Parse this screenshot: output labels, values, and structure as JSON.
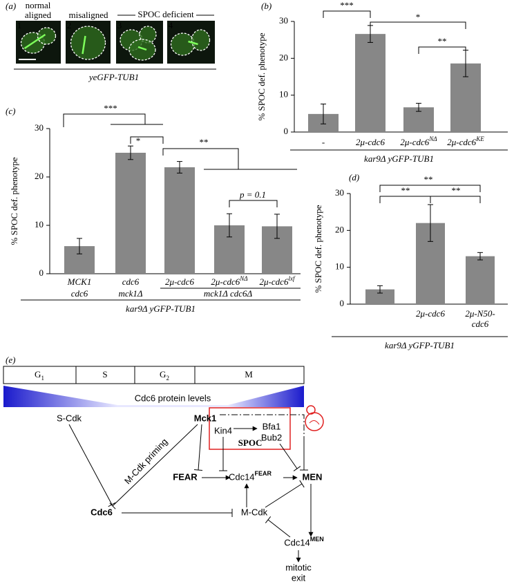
{
  "panel_labels": [
    "(a)",
    "(b)",
    "(c)",
    "(d)",
    "(e)"
  ],
  "panel_a": {
    "groups": [
      [
        "normal",
        "aligned"
      ],
      "misaligned",
      "SPOC deficient"
    ],
    "image_numbers": [
      "1",
      "2",
      "3",
      "4"
    ],
    "caption": "yeGFP-TUB1"
  },
  "chart_data": [
    {
      "type": "bar",
      "y_label": "% SPOC def. phenotype",
      "x_label": "kar9Δ yGFP-TUB1",
      "categories": [
        "-",
        "2μ-cdc6",
        "2μ-cdc6",
        "2μ-cdc6"
      ],
      "superscripts": [
        null,
        null,
        "NΔ",
        "KE"
      ],
      "values": [
        4.9,
        26.6,
        6.7,
        18.6
      ],
      "errors": [
        2.7,
        2.3,
        1.1,
        3.6
      ],
      "color": "#878787",
      "ylim": [
        0,
        30
      ],
      "yticks": [
        0,
        10,
        20,
        30
      ],
      "annotations": [
        "***",
        "*",
        "**"
      ]
    },
    {
      "type": "bar",
      "y_label": "% SPOC def. phenotype",
      "x_label": "kar9Δ yGFP-TUB1",
      "group_label": "mck1Δ cdc6Δ",
      "categories": [
        [
          "MCK1",
          "cdc6"
        ],
        [
          "cdc6",
          "mck1Δ"
        ],
        "2μ-cdc6",
        "2μ-cdc6",
        "2μ-cdc6"
      ],
      "superscripts": [
        null,
        null,
        null,
        "NΔ",
        "lxf"
      ],
      "values": [
        5.7,
        25,
        22,
        10,
        9.8
      ],
      "errors": [
        1.6,
        1.4,
        1.2,
        2.4,
        2.5
      ],
      "color": "#878787",
      "ylim": [
        0,
        30
      ],
      "yticks": [
        0,
        10,
        20,
        30
      ],
      "annotations": [
        "***",
        "*",
        "**",
        "p = 0.1"
      ]
    },
    {
      "type": "bar",
      "y_label": "% SPOC def. phenotype",
      "x_label": "kar9Δ yGFP-TUB1",
      "categories": [
        null,
        "2μ-cdc6",
        [
          "2μ-N50-",
          "cdc6"
        ]
      ],
      "superscripts": [
        null,
        null,
        null
      ],
      "values": [
        4,
        22,
        13
      ],
      "errors": [
        1,
        5,
        1
      ],
      "color": "#878787",
      "ylim": [
        0,
        30
      ],
      "yticks": [
        0,
        10,
        20,
        30
      ],
      "annotations": [
        "**",
        "**",
        "**"
      ]
    }
  ],
  "panel_e": {
    "phases": [
      "G",
      "S",
      "G",
      "M"
    ],
    "phase_subscripts": [
      "1",
      null,
      "2",
      null
    ],
    "levels_label": "Cdc6 protein levels",
    "nodes": {
      "s_cdk": "S-Cdk",
      "mck1": "Mck1",
      "kin4": "Kin4",
      "bfa1": "Bfa1",
      "bub2": "Bub2",
      "spoc": "SPOC",
      "priming": "M-Cdk priming",
      "fear": "FEAR",
      "cdc14_fear": "Cdc14",
      "cdc14_fear_sup": "FEAR",
      "men": "MEN",
      "cdc6": "Cdc6",
      "m_cdk": "M-Cdk",
      "cdc14_men": "Cdc14",
      "cdc14_men_sup": "MEN",
      "mitotic_exit": [
        "mitotic",
        "exit"
      ]
    }
  }
}
